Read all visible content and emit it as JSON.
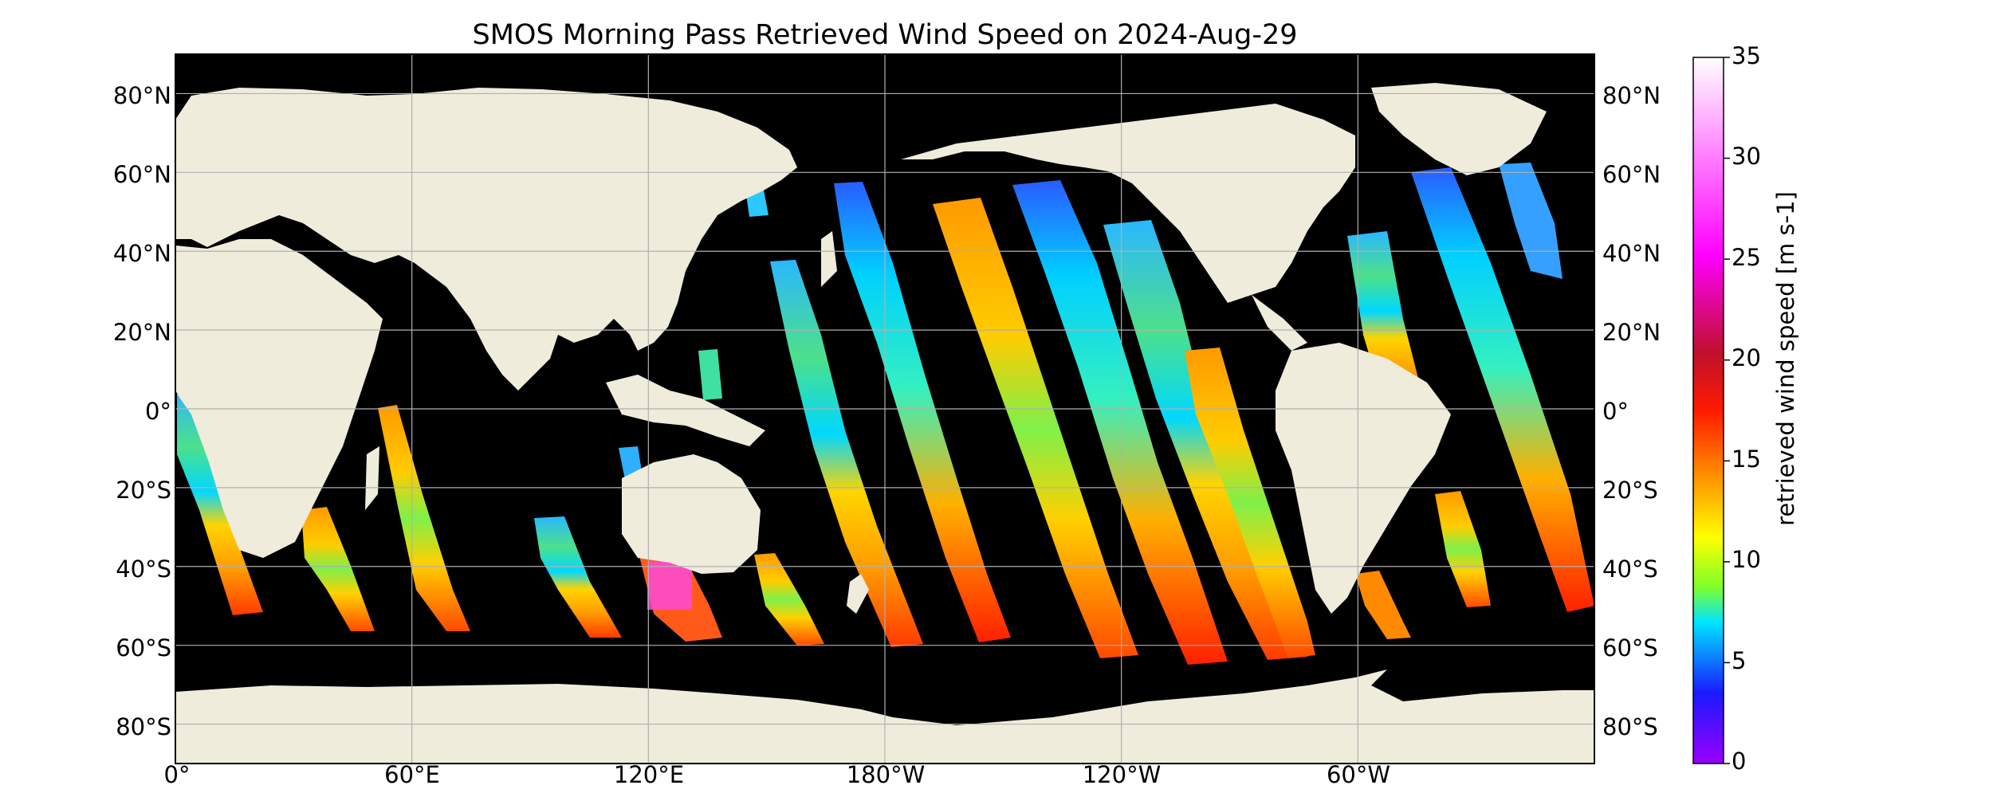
{
  "map": {
    "title": "SMOS Morning Pass Retrieved Wind Speed on 2024-Aug-29",
    "projection": "equirectangular",
    "central_meridian": 180,
    "lon_ticks": [
      "0°",
      "60°E",
      "120°E",
      "180°W",
      "120°W",
      "60°W"
    ],
    "lat_ticks": [
      "80°N",
      "60°N",
      "40°N",
      "20°N",
      "0°",
      "20°S",
      "40°S",
      "60°S",
      "80°S"
    ],
    "colors": {
      "land": "#efecdc",
      "no_data": "#000000",
      "gridline": "#b0b0b0"
    }
  },
  "colorbar": {
    "label": "retrieved wind speed [m s-1]",
    "ticks": [
      "0",
      "5",
      "10",
      "15",
      "20",
      "25",
      "30",
      "35"
    ],
    "min": 0,
    "max": 35,
    "stops": [
      "#9b00ff",
      "#1a1aff",
      "#00e5ff",
      "#7fff2a",
      "#ffff00",
      "#ff9900",
      "#ff1a00",
      "#c0102a",
      "#ff00ff",
      "#ff7fff",
      "#ffffff"
    ]
  }
}
